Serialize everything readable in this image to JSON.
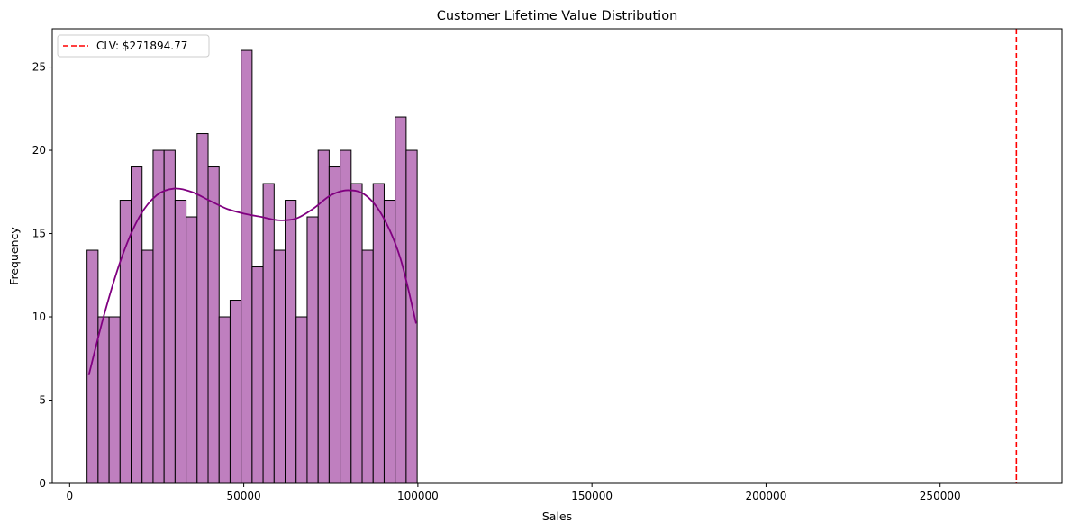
{
  "chart_data": {
    "type": "bar",
    "title": "Customer Lifetime Value Distribution",
    "xlabel": "Sales",
    "ylabel": "Frequency",
    "xlim": [
      -5000,
      285000
    ],
    "ylim": [
      0,
      27.3
    ],
    "x_ticks": [
      0,
      50000,
      100000,
      150000,
      200000,
      250000
    ],
    "y_ticks": [
      0,
      5,
      10,
      15,
      20,
      25
    ],
    "grid": false,
    "legend_position": "top-left",
    "colors": {
      "bar_fill": "#bf7fbf",
      "bar_edge": "#000000",
      "kde": "#800080",
      "clv_line": "#ff0000"
    },
    "histogram": {
      "bin_start": 5000,
      "bin_width": 3160,
      "counts": [
        14,
        10,
        10,
        17,
        19,
        14,
        20,
        20,
        17,
        16,
        21,
        19,
        10,
        11,
        26,
        13,
        18,
        14,
        17,
        10,
        16,
        20,
        19,
        20,
        18,
        14,
        18,
        17,
        22,
        20
      ]
    },
    "kde": {
      "x": [
        5500,
        10000,
        15000,
        20000,
        25000,
        30000,
        35000,
        40000,
        45000,
        50000,
        55000,
        60000,
        65000,
        70000,
        75000,
        80000,
        85000,
        90000,
        95000,
        99500
      ],
      "y": [
        6.5,
        10.2,
        13.6,
        16.0,
        17.3,
        17.7,
        17.5,
        17.0,
        16.5,
        16.2,
        16.0,
        15.8,
        15.9,
        16.5,
        17.3,
        17.6,
        17.3,
        16.0,
        13.5,
        9.6
      ]
    },
    "reference_line": {
      "x": 271894.77,
      "label": "CLV: $271894.77",
      "style": "dashed"
    }
  }
}
